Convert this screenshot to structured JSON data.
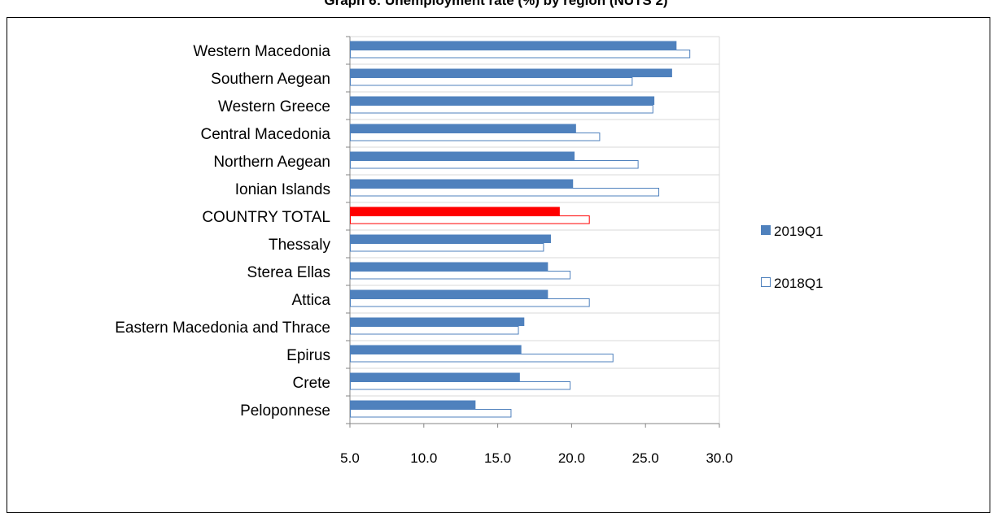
{
  "chart_data": {
    "type": "bar",
    "orientation": "horizontal",
    "title": "Graph 6: Unemployment rate (%) by region (NUTS 2)",
    "categories": [
      "Western Macedonia",
      "Southern Aegean",
      "Western Greece",
      "Central Macedonia",
      "Northern Aegean",
      "Ionian Islands",
      "COUNTRY TOTAL",
      "Thessaly",
      "Sterea Ellas",
      "Attica",
      "Eastern Macedonia and Thrace",
      "Epirus",
      "Crete",
      "Peloponnese"
    ],
    "series": [
      {
        "name": "2019Q1",
        "style": "filled",
        "color": "#4f81bd",
        "values": [
          27.1,
          26.8,
          25.6,
          20.3,
          20.2,
          20.1,
          19.2,
          18.6,
          18.4,
          18.4,
          16.8,
          16.6,
          16.5,
          13.5
        ]
      },
      {
        "name": "2018Q1",
        "style": "outline",
        "color": "#4f81bd",
        "values": [
          28.0,
          24.1,
          25.5,
          21.9,
          24.5,
          25.9,
          21.2,
          18.1,
          19.9,
          21.2,
          16.4,
          22.8,
          19.9,
          15.9
        ]
      }
    ],
    "highlight": {
      "category": "COUNTRY TOTAL",
      "color": "#ff0000"
    },
    "xlim": [
      5.0,
      30.0
    ],
    "xticks": [
      "5.0",
      "10.0",
      "15.0",
      "20.0",
      "25.0",
      "30.0"
    ],
    "xlabel": "",
    "ylabel": "",
    "grid": true,
    "legend": "right"
  }
}
